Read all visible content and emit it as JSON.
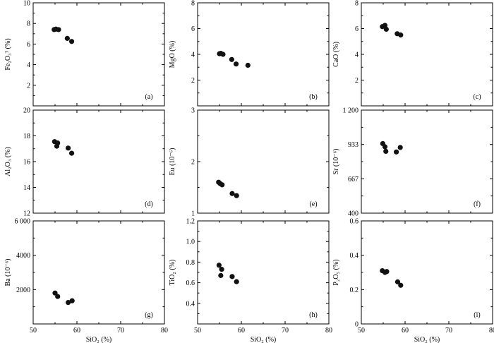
{
  "x_axis_label": "SiO₂ (%)",
  "chart_data": [
    {
      "id": "a",
      "type": "scatter",
      "label": "(a)",
      "ylabel": "Fe₂O₃ᵀ (%)",
      "xlim": [
        50,
        80
      ],
      "ylim": [
        0,
        10
      ],
      "yticks": [
        0,
        2,
        4,
        6,
        8,
        10
      ],
      "ytick_labels": [
        "",
        "2",
        "4",
        "6",
        "8",
        "10"
      ],
      "x": [
        54.8,
        55.2,
        55.8,
        57.8,
        58.8
      ],
      "y": [
        7.4,
        7.45,
        7.4,
        6.55,
        6.25
      ]
    },
    {
      "id": "b",
      "type": "scatter",
      "label": "(b)",
      "ylabel": "MgO (%)",
      "xlim": [
        50,
        80
      ],
      "ylim": [
        0,
        8
      ],
      "yticks": [
        0,
        2,
        4,
        6,
        8
      ],
      "ytick_labels": [
        "",
        "2",
        "4",
        "6",
        "8"
      ],
      "x": [
        55.0,
        55.3,
        55.8,
        57.8,
        58.8,
        61.5
      ],
      "y": [
        4.05,
        4.08,
        4.0,
        3.6,
        3.25,
        3.15
      ]
    },
    {
      "id": "c",
      "type": "scatter",
      "label": "(c)",
      "ylabel": "CaO (%)",
      "xlim": [
        50,
        80
      ],
      "ylim": [
        0,
        8
      ],
      "yticks": [
        0,
        2,
        4,
        6,
        8
      ],
      "ytick_labels": [
        "",
        "2",
        "4",
        "6",
        "8"
      ],
      "x": [
        54.8,
        55.4,
        55.7,
        58.2,
        59.0
      ],
      "y": [
        6.15,
        6.25,
        5.95,
        5.6,
        5.5
      ]
    },
    {
      "id": "d",
      "type": "scatter",
      "label": "(d)",
      "ylabel": "Al₂O₃ (%)",
      "xlim": [
        50,
        80
      ],
      "ylim": [
        12,
        20
      ],
      "yticks": [
        12,
        14,
        16,
        18,
        20
      ],
      "ytick_labels": [
        "12",
        "14",
        "16",
        "18",
        "20"
      ],
      "x": [
        54.9,
        55.6,
        55.4,
        58.0,
        58.8
      ],
      "y": [
        17.55,
        17.45,
        17.2,
        17.05,
        16.65
      ]
    },
    {
      "id": "e",
      "type": "scatter",
      "label": "(e)",
      "ylabel": "Eu (10⁻⁶)",
      "xlim": [
        50,
        80
      ],
      "ylim": [
        1,
        3
      ],
      "yticks": [
        1,
        2,
        3
      ],
      "ytick_labels": [
        "1",
        "2",
        "3"
      ],
      "x": [
        54.8,
        55.2,
        55.6,
        57.9,
        58.9
      ],
      "y": [
        1.6,
        1.57,
        1.55,
        1.38,
        1.34
      ]
    },
    {
      "id": "f",
      "type": "scatter",
      "label": "(f)",
      "ylabel": "Sr (10⁻⁶)",
      "xlim": [
        50,
        80
      ],
      "ylim": [
        400,
        1200
      ],
      "yticks": [
        400,
        667,
        933,
        1200
      ],
      "ytick_labels": [
        "400",
        "667",
        "933",
        "1 200"
      ],
      "x": [
        54.9,
        55.4,
        55.6,
        58.0,
        58.9
      ],
      "y": [
        940,
        915,
        880,
        875,
        910
      ]
    },
    {
      "id": "g",
      "type": "scatter",
      "label": "(g)",
      "ylabel": "Ba (10⁻⁶)",
      "xlim": [
        50,
        80
      ],
      "ylim": [
        0,
        6000
      ],
      "yticks": [
        0,
        2000,
        4000,
        6000
      ],
      "ytick_labels": [
        "",
        "2000",
        "4000",
        "6 000"
      ],
      "xticks": [
        50,
        60,
        70,
        80
      ],
      "xtick_labels": [
        "50",
        "60",
        "70",
        "80"
      ],
      "x": [
        55.0,
        55.6,
        58.0,
        58.9
      ],
      "y": [
        1800,
        1600,
        1250,
        1350
      ]
    },
    {
      "id": "h",
      "type": "scatter",
      "label": "(h)",
      "ylabel": "TiO₂ (%)",
      "xlim": [
        50,
        80
      ],
      "ylim": [
        0.2,
        1.2
      ],
      "yticks": [
        0.2,
        0.4,
        0.6,
        0.8,
        1.0,
        1.2
      ],
      "ytick_labels": [
        "",
        "0.4",
        "0.6",
        "0.8",
        "1.0",
        "1.2"
      ],
      "xticks": [
        50,
        60,
        70,
        80
      ],
      "xtick_labels": [
        "50",
        "60",
        "70",
        "80"
      ],
      "x": [
        54.9,
        55.5,
        55.3,
        57.9,
        58.9
      ],
      "y": [
        0.77,
        0.73,
        0.67,
        0.66,
        0.61
      ]
    },
    {
      "id": "i",
      "type": "scatter",
      "label": "(i)",
      "ylabel": "P₂O₅ (%)",
      "xlim": [
        50,
        80
      ],
      "ylim": [
        0,
        0.6
      ],
      "yticks": [
        0,
        0.2,
        0.4,
        0.6
      ],
      "ytick_labels": [
        "0",
        "0.2",
        "0.4",
        "0.6"
      ],
      "xticks": [
        50,
        60,
        70,
        80
      ],
      "xtick_labels": [
        "50",
        "60",
        "70",
        "80"
      ],
      "x": [
        54.8,
        55.4,
        55.8,
        58.3,
        59.0
      ],
      "y": [
        0.31,
        0.3,
        0.305,
        0.245,
        0.225
      ]
    }
  ]
}
